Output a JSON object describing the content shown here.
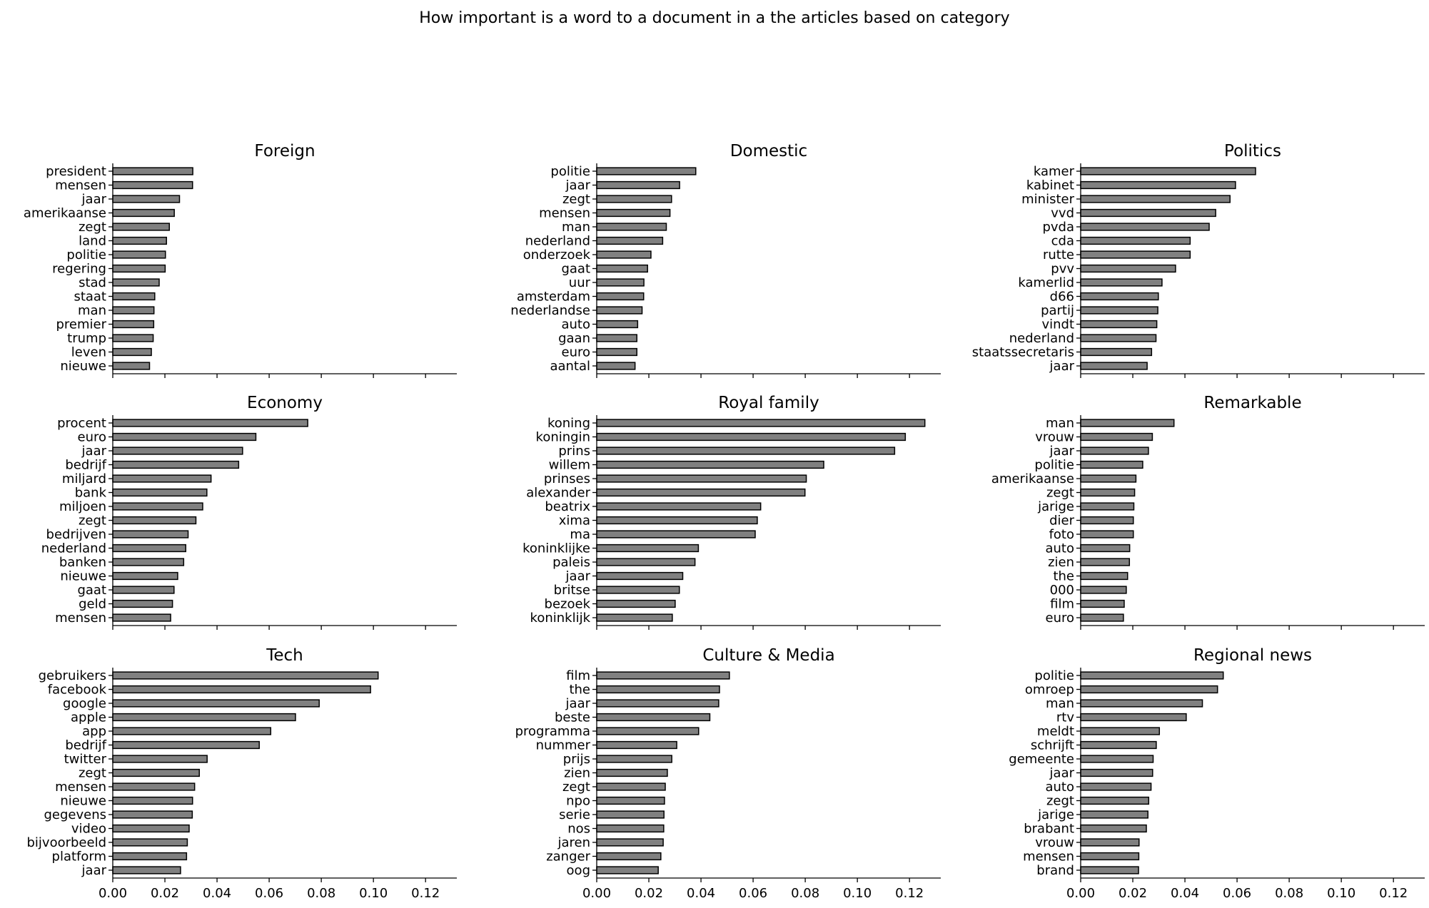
{
  "chart_data": {
    "type": "bar",
    "title": "How important is a word to a document in a the articles based on category",
    "orientation": "horizontal",
    "xlim": [
      0,
      0.132
    ],
    "xticks": [
      "0.00",
      "0.02",
      "0.04",
      "0.06",
      "0.08",
      "0.10",
      "0.12"
    ],
    "bar_color": "#808080",
    "edge_color": "#000000",
    "grid": false,
    "panels": [
      {
        "title": "Foreign",
        "categories": [
          "president",
          "mensen",
          "jaar",
          "amerikaanse",
          "zegt",
          "land",
          "politie",
          "regering",
          "stad",
          "staat",
          "man",
          "premier",
          "trump",
          "leven",
          "nieuwe"
        ],
        "values": [
          0.0307,
          0.0306,
          0.0256,
          0.0236,
          0.0217,
          0.0206,
          0.0202,
          0.0201,
          0.0178,
          0.0161,
          0.0158,
          0.0157,
          0.0155,
          0.0148,
          0.0141
        ]
      },
      {
        "title": "Domestic",
        "categories": [
          "politie",
          "jaar",
          "zegt",
          "mensen",
          "man",
          "nederland",
          "onderzoek",
          "gaat",
          "uur",
          "amsterdam",
          "nederlandse",
          "auto",
          "gaan",
          "euro",
          "aantal"
        ],
        "values": [
          0.038,
          0.0318,
          0.0287,
          0.0281,
          0.0267,
          0.0253,
          0.0208,
          0.0195,
          0.0181,
          0.018,
          0.0174,
          0.0157,
          0.0154,
          0.0154,
          0.0147
        ]
      },
      {
        "title": "Politics",
        "categories": [
          "kamer",
          "kabinet",
          "minister",
          "vvd",
          "pvda",
          "cda",
          "rutte",
          "pvv",
          "kamerlid",
          "d66",
          "partij",
          "vindt",
          "nederland",
          "staatssecretaris",
          "jaar"
        ],
        "values": [
          0.0671,
          0.0594,
          0.0573,
          0.0518,
          0.0493,
          0.042,
          0.042,
          0.0364,
          0.0312,
          0.0298,
          0.0296,
          0.0292,
          0.0289,
          0.0272,
          0.0255
        ]
      },
      {
        "title": "Economy",
        "categories": [
          "procent",
          "euro",
          "jaar",
          "bedrijf",
          "miljard",
          "bank",
          "miljoen",
          "zegt",
          "bedrijven",
          "nederland",
          "banken",
          "nieuwe",
          "gaat",
          "geld",
          "mensen"
        ],
        "values": [
          0.0748,
          0.0549,
          0.0498,
          0.0483,
          0.0377,
          0.0361,
          0.0345,
          0.0319,
          0.0289,
          0.028,
          0.0272,
          0.0249,
          0.0235,
          0.0229,
          0.0222
        ]
      },
      {
        "title": "Royal family",
        "categories": [
          "koning",
          "koningin",
          "prins",
          "willem",
          "prinses",
          "alexander",
          "beatrix",
          "xima",
          "ma",
          "koninklijke",
          "paleis",
          "jaar",
          "britse",
          "bezoek",
          "koninklijk"
        ],
        "values": [
          0.1259,
          0.1184,
          0.1143,
          0.0871,
          0.0804,
          0.0799,
          0.0629,
          0.0616,
          0.0608,
          0.039,
          0.0377,
          0.033,
          0.0317,
          0.0301,
          0.029
        ]
      },
      {
        "title": "Remarkable",
        "categories": [
          "man",
          "vrouw",
          "jaar",
          "politie",
          "amerikaanse",
          "zegt",
          "jarige",
          "dier",
          "foto",
          "auto",
          "zien",
          "the",
          "000",
          "film",
          "euro"
        ],
        "values": [
          0.0358,
          0.0275,
          0.026,
          0.0238,
          0.0212,
          0.0207,
          0.0204,
          0.0202,
          0.0202,
          0.0188,
          0.0187,
          0.018,
          0.0175,
          0.0167,
          0.0164
        ]
      },
      {
        "title": "Tech",
        "categories": [
          "gebruikers",
          "facebook",
          "google",
          "apple",
          "app",
          "bedrijf",
          "twitter",
          "zegt",
          "mensen",
          "nieuwe",
          "gegevens",
          "video",
          "bijvoorbeeld",
          "platform",
          "jaar"
        ],
        "values": [
          0.1018,
          0.0989,
          0.0792,
          0.0701,
          0.0606,
          0.0562,
          0.0362,
          0.0332,
          0.0314,
          0.0306,
          0.0305,
          0.0293,
          0.0286,
          0.0283,
          0.026
        ]
      },
      {
        "title": "Culture & Media",
        "categories": [
          "film",
          "the",
          "jaar",
          "beste",
          "programma",
          "nummer",
          "prijs",
          "zien",
          "zegt",
          "npo",
          "serie",
          "nos",
          "jaren",
          "zanger",
          "oog"
        ],
        "values": [
          0.0509,
          0.0471,
          0.0468,
          0.0434,
          0.0391,
          0.0307,
          0.0288,
          0.0271,
          0.0263,
          0.026,
          0.0258,
          0.0257,
          0.0255,
          0.0246,
          0.0236
        ]
      },
      {
        "title": "Regional news",
        "categories": [
          "politie",
          "omroep",
          "man",
          "rtv",
          "meldt",
          "schrijft",
          "gemeente",
          "jaar",
          "auto",
          "zegt",
          "jarige",
          "brabant",
          "vrouw",
          "mensen",
          "brand"
        ],
        "values": [
          0.0547,
          0.0525,
          0.0467,
          0.0405,
          0.0302,
          0.029,
          0.0278,
          0.0276,
          0.027,
          0.0261,
          0.0258,
          0.0252,
          0.0224,
          0.0223,
          0.0222
        ]
      }
    ]
  }
}
